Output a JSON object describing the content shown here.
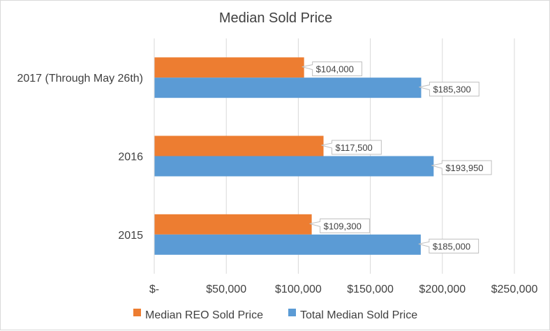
{
  "chart_data": {
    "type": "bar",
    "orientation": "horizontal",
    "title": "Median Sold Price",
    "categories": [
      "2017 (Through May 26th)",
      "2016",
      "2015"
    ],
    "series": [
      {
        "name": "Median REO Sold Price",
        "color": "#ed7d31",
        "values": [
          104000,
          117500,
          109300
        ],
        "labels": [
          "$104,000",
          "$117,500",
          "$109,300"
        ]
      },
      {
        "name": "Total Median Sold Price",
        "color": "#5b9bd5",
        "values": [
          185300,
          193950,
          185000
        ],
        "labels": [
          "$185,300",
          "$193,950",
          "$185,000"
        ]
      }
    ],
    "xlim": [
      0,
      250000
    ],
    "x_ticks": [
      0,
      50000,
      100000,
      150000,
      200000,
      250000
    ],
    "x_tick_labels": [
      "$-",
      "$50,000",
      "$100,000",
      "$150,000",
      "$200,000",
      "$250,000"
    ],
    "xlabel": "",
    "ylabel": "",
    "grid": true,
    "legend_position": "bottom"
  }
}
